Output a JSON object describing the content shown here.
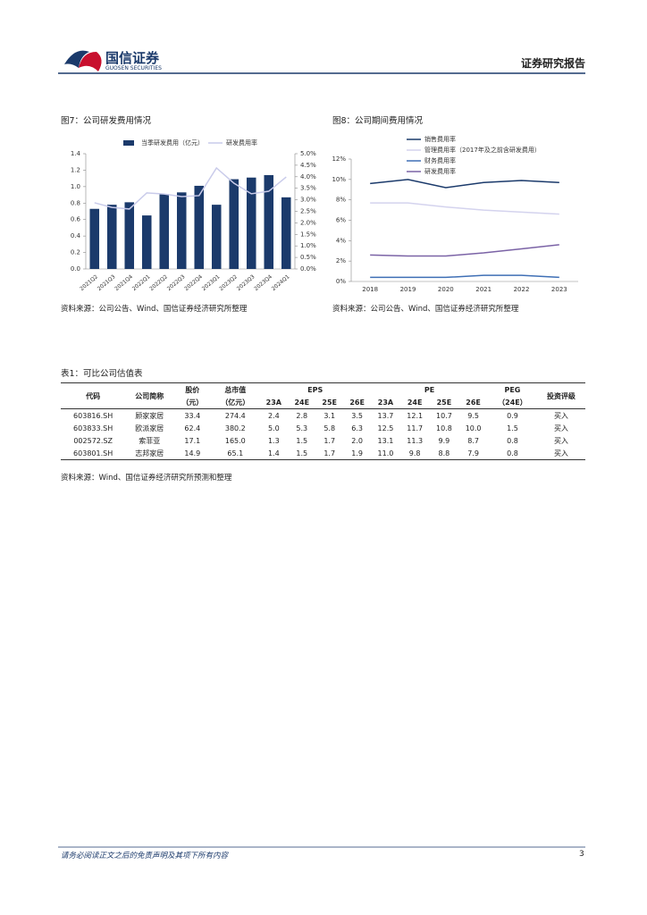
{
  "header": {
    "brand": "国信证券",
    "brand_en": "GUOSEN SECURITIES",
    "report_type": "证券研究报告"
  },
  "chart_data": [
    {
      "type": "bar",
      "title": "图7：公司研发费用情况",
      "source": "资料来源：公司公告、Wind、国信证券经济研究所整理",
      "categories": [
        "2021Q2",
        "2021Q3",
        "2021Q4",
        "2022Q1",
        "2022Q2",
        "2022Q3",
        "2022Q4",
        "2023Q1",
        "2023Q2",
        "2023Q3",
        "2023Q4",
        "2024Q1"
      ],
      "series": [
        {
          "name": "当季研发费用（亿元）",
          "color": "#1b3a6b",
          "type": "bar",
          "values": [
            0.73,
            0.78,
            0.81,
            0.65,
            0.91,
            0.93,
            1.01,
            0.78,
            1.09,
            1.11,
            1.14,
            0.87
          ]
        },
        {
          "name": "研发费用率",
          "color": "#c9cbea",
          "type": "line",
          "axis": "y2",
          "values": [
            2.87,
            2.67,
            2.6,
            3.3,
            3.25,
            3.14,
            3.18,
            4.38,
            3.72,
            3.26,
            3.37,
            3.99
          ]
        }
      ],
      "ylim": [
        0,
        1.4
      ],
      "yticks": [
        {
          "value": 0,
          "label": "0.0"
        },
        {
          "value": 0.2,
          "label": "0.2"
        },
        {
          "value": 0.4,
          "label": "0.4"
        },
        {
          "value": 0.6,
          "label": "0.6"
        },
        {
          "value": 0.8,
          "label": "0.8"
        },
        {
          "value": 1.0,
          "label": "1.0"
        },
        {
          "value": 1.2,
          "label": "1.2"
        },
        {
          "value": 1.4,
          "label": "1.4"
        }
      ],
      "y2lim": [
        0,
        5
      ],
      "y2ticks": [
        {
          "value": 0,
          "label": "0.0%"
        },
        {
          "value": 0.5,
          "label": "0.5%"
        },
        {
          "value": 1,
          "label": "1.0%"
        },
        {
          "value": 1.5,
          "label": "1.5%"
        },
        {
          "value": 2,
          "label": "2.0%"
        },
        {
          "value": 2.5,
          "label": "2.5%"
        },
        {
          "value": 3,
          "label": "3.0%"
        },
        {
          "value": 3.5,
          "label": "3.5%"
        },
        {
          "value": 4,
          "label": "4.0%"
        },
        {
          "value": 4.5,
          "label": "4.5%"
        },
        {
          "value": 5,
          "label": "5.0%"
        }
      ],
      "grid": false,
      "legend": "top"
    },
    {
      "type": "line",
      "title": "图8：公司期间费用情况",
      "source": "资料来源：公司公告、Wind、国信证券经济研究所整理",
      "categories": [
        "2018",
        "2019",
        "2020",
        "2021",
        "2022",
        "2023"
      ],
      "series": [
        {
          "name": "销售费用率",
          "color": "#1b3a6b",
          "values": [
            9.6,
            10.0,
            9.2,
            9.7,
            9.9,
            9.7
          ]
        },
        {
          "name": "管理费用率（2017年及之前含研发费用）",
          "color": "#d4d3ee",
          "values": [
            7.7,
            7.7,
            7.3,
            7.0,
            6.8,
            6.6
          ]
        },
        {
          "name": "财务费用率",
          "color": "#3f6fb5",
          "values": [
            0.4,
            0.4,
            0.4,
            0.6,
            0.6,
            0.4
          ]
        },
        {
          "name": "研发费用率",
          "color": "#7b63a6",
          "values": [
            2.6,
            2.5,
            2.5,
            2.8,
            3.2,
            3.6
          ]
        }
      ],
      "ylim": [
        0,
        12
      ],
      "yticks": [
        {
          "value": 0,
          "label": "0%"
        },
        {
          "value": 2,
          "label": "2%"
        },
        {
          "value": 4,
          "label": "4%"
        },
        {
          "value": 6,
          "label": "6%"
        },
        {
          "value": 8,
          "label": "8%"
        },
        {
          "value": 10,
          "label": "10%"
        },
        {
          "value": 12,
          "label": "12%"
        }
      ],
      "grid": false,
      "legend": "top-left"
    }
  ],
  "table": {
    "title": "表1：可比公司估值表",
    "columns": [
      {
        "label": "代码"
      },
      {
        "label": "公司简称"
      },
      {
        "label": "股价",
        "unit": "（元）"
      },
      {
        "label": "总市值",
        "unit": "（亿元）"
      },
      {
        "label": "EPS"
      },
      {
        "label": "PE"
      },
      {
        "label": "PEG",
        "unit": "（24E）"
      },
      {
        "label": "投资评级"
      }
    ],
    "eps_periods": [
      "23A",
      "24E",
      "25E",
      "26E"
    ],
    "pe_periods": [
      "23A",
      "24E",
      "25E",
      "26E"
    ],
    "rows": [
      [
        "603816.SH",
        "顾家家居",
        "33.4",
        "274.4",
        "2.4",
        "2.8",
        "3.1",
        "3.5",
        "13.7",
        "12.1",
        "10.7",
        "9.5",
        "0.9",
        "买入"
      ],
      [
        "603833.SH",
        "欧派家居",
        "62.4",
        "380.2",
        "5.0",
        "5.3",
        "5.8",
        "6.3",
        "12.5",
        "11.7",
        "10.8",
        "10.0",
        "1.5",
        "买入"
      ],
      [
        "002572.SZ",
        "索菲亚",
        "17.1",
        "165.0",
        "1.3",
        "1.5",
        "1.7",
        "2.0",
        "13.1",
        "11.3",
        "9.9",
        "8.7",
        "0.8",
        "买入"
      ],
      [
        "603801.SH",
        "志邦家居",
        "14.9",
        "65.1",
        "1.4",
        "1.5",
        "1.7",
        "1.9",
        "11.0",
        "9.8",
        "8.8",
        "7.9",
        "0.8",
        "买入"
      ]
    ],
    "source": "资料来源：Wind、国信证券经济研究所预测和整理"
  },
  "footer": {
    "disclaimer": "请务必阅读正文之后的免责声明及其项下所有内容",
    "page": "3"
  }
}
